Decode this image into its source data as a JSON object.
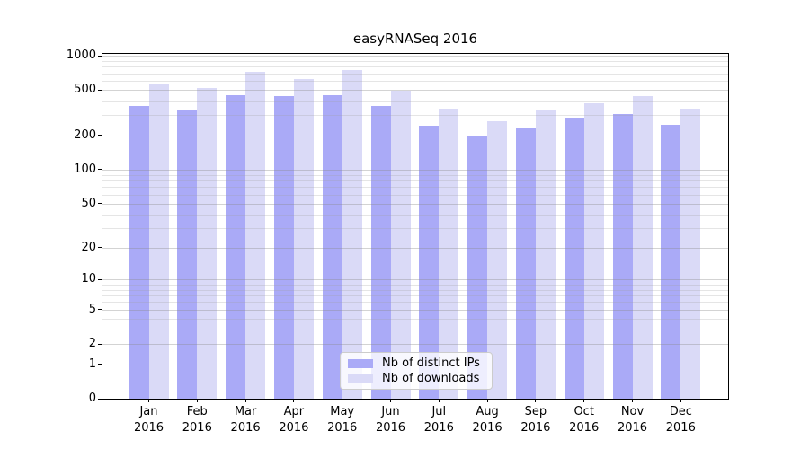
{
  "chart_data": {
    "type": "bar",
    "title": "easyRNASeq 2016",
    "x_months": [
      "Jan",
      "Feb",
      "Mar",
      "Apr",
      "May",
      "Jun",
      "Jul",
      "Aug",
      "Sep",
      "Oct",
      "Nov",
      "Dec"
    ],
    "x_year": "2016",
    "y_ticks": [
      0,
      1,
      2,
      5,
      10,
      20,
      50,
      100,
      200,
      500,
      1000
    ],
    "y_scale": "log10(value+1)",
    "ylim": [
      0,
      1000
    ],
    "grid": "horizontal major and minor gridlines, light gray, drawn over bars",
    "legend_position": "bottom-center inside plot",
    "series": [
      {
        "name": "Nb of distinct IPs",
        "color": "#aaaaf7",
        "values": [
          361,
          330,
          449,
          443,
          451,
          361,
          242,
          200,
          232,
          284,
          307,
          248
        ]
      },
      {
        "name": "Nb of downloads",
        "color": "#dadaf7",
        "values": [
          568,
          525,
          719,
          622,
          753,
          494,
          344,
          267,
          330,
          384,
          443,
          344
        ]
      }
    ]
  },
  "colors": {
    "frame": "#000000",
    "grid_minor": "rgba(160,160,160,0.28)",
    "grid_major": "rgba(140,140,140,0.38)",
    "text": "#000000",
    "legend_border": "#cccccc",
    "legend_background": "rgba(255,255,255,0.8)"
  }
}
